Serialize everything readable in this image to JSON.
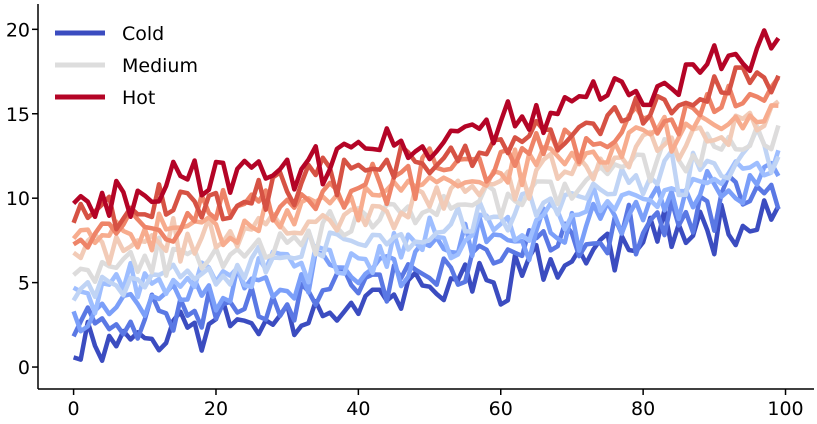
{
  "chart_data": {
    "type": "line",
    "x_range": [
      0,
      99
    ],
    "xlim": [
      -5,
      104
    ],
    "ylim": [
      -1.3,
      21.5
    ],
    "x_ticks": [
      0,
      20,
      40,
      60,
      80,
      100
    ],
    "y_ticks": [
      0,
      5,
      10,
      15,
      20
    ],
    "grid": false,
    "legend": {
      "position": "top-left",
      "entries": [
        {
          "label": "Cold",
          "color": "#3b4cc0"
        },
        {
          "label": "Medium",
          "color": "#dddddd"
        },
        {
          "label": "Hot",
          "color": "#b40426"
        }
      ]
    },
    "series": [
      {
        "color": "#3b4cc0",
        "start": 1.5,
        "end": 9.5,
        "noise": 1.2,
        "seed": 11
      },
      {
        "color": "#5a78e4",
        "start": 2.5,
        "end": 10.5,
        "noise": 1.1,
        "seed": 23
      },
      {
        "color": "#7b9ff9",
        "start": 3.5,
        "end": 11.5,
        "noise": 1.1,
        "seed": 37
      },
      {
        "color": "#9ebeff",
        "start": 4.3,
        "end": 12.3,
        "noise": 1.0,
        "seed": 41
      },
      {
        "color": "#c0d4f5",
        "start": 5.0,
        "end": 13.0,
        "noise": 1.0,
        "seed": 53
      },
      {
        "color": "#dddcdc",
        "start": 6.0,
        "end": 14.0,
        "noise": 0.9,
        "seed": 67
      },
      {
        "color": "#f2cbb7",
        "start": 6.8,
        "end": 14.8,
        "noise": 0.9,
        "seed": 71
      },
      {
        "color": "#f7ac8e",
        "start": 7.5,
        "end": 15.5,
        "noise": 0.9,
        "seed": 83
      },
      {
        "color": "#ee8468",
        "start": 8.3,
        "end": 16.3,
        "noise": 1.0,
        "seed": 97
      },
      {
        "color": "#d65244",
        "start": 9.0,
        "end": 17.3,
        "noise": 1.0,
        "seed": 101
      },
      {
        "color": "#b40426",
        "start": 10.0,
        "end": 19.0,
        "noise": 1.0,
        "seed": 113
      }
    ]
  }
}
